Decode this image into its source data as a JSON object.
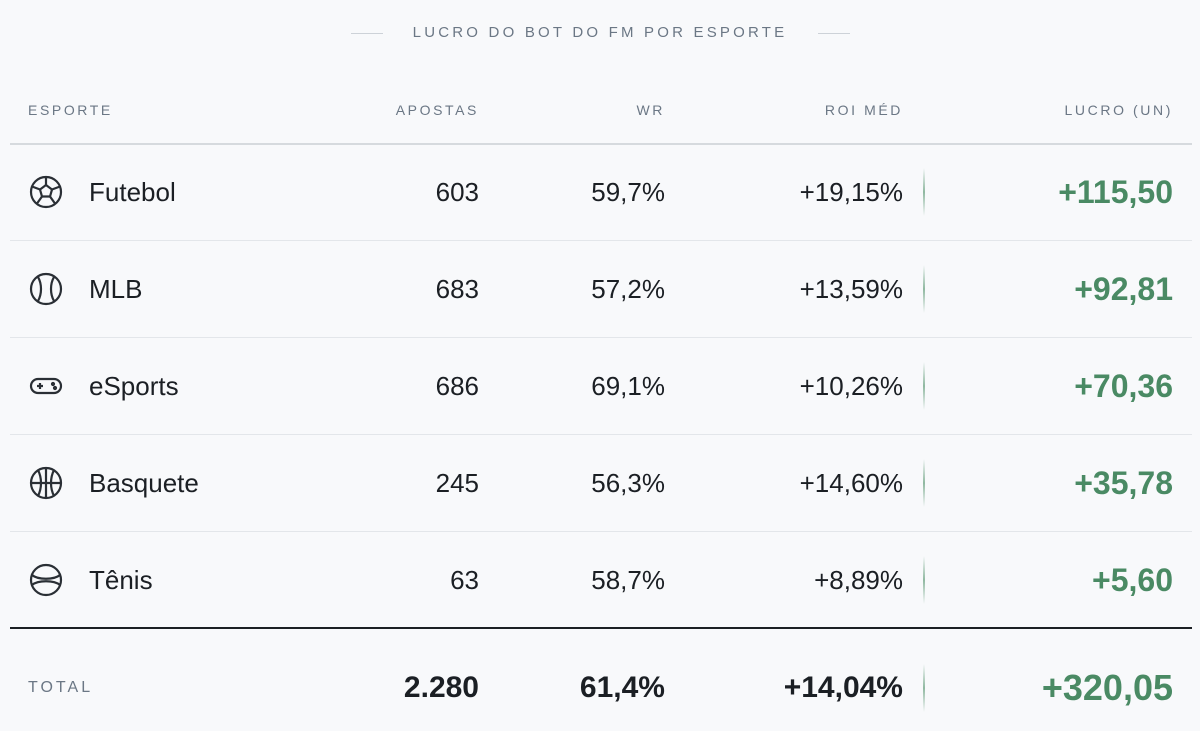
{
  "title": "LUCRO DO BOT DO FM POR ESPORTE",
  "table": {
    "headers": [
      "ESPORTE",
      "APOSTAS",
      "WR",
      "ROI MÉD",
      "LUCRO (UN)"
    ],
    "rows": [
      [
        "Futebol",
        "603",
        "59,7%",
        "+19,15%",
        "+115,50"
      ],
      [
        "MLB",
        "683",
        "57,2%",
        "+13,59%",
        "+92,81"
      ],
      [
        "eSports",
        "686",
        "69,1%",
        "+10,26%",
        "+70,36"
      ],
      [
        "Basquete",
        "245",
        "56,3%",
        "+14,60%",
        "+35,78"
      ],
      [
        "Tênis",
        "63",
        "58,7%",
        "+8,89%",
        "+5,60"
      ]
    ],
    "total": [
      "TOTAL",
      "2.280",
      "61,4%",
      "+14,04%",
      "+320,05"
    ]
  }
}
